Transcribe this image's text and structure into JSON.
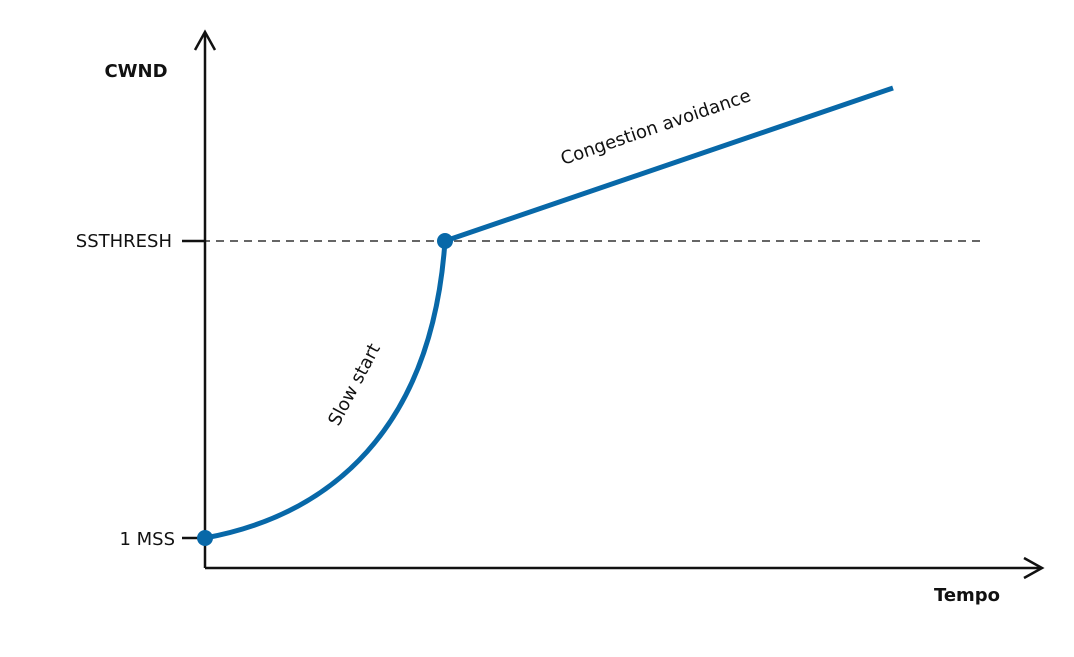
{
  "y_axis_label": "CWND",
  "x_axis_label": "Tempo",
  "y_ticks": [
    "SSTHRESH",
    "1 MSS"
  ],
  "annotations": [
    "Slow start",
    "Congestion avoidance"
  ]
}
